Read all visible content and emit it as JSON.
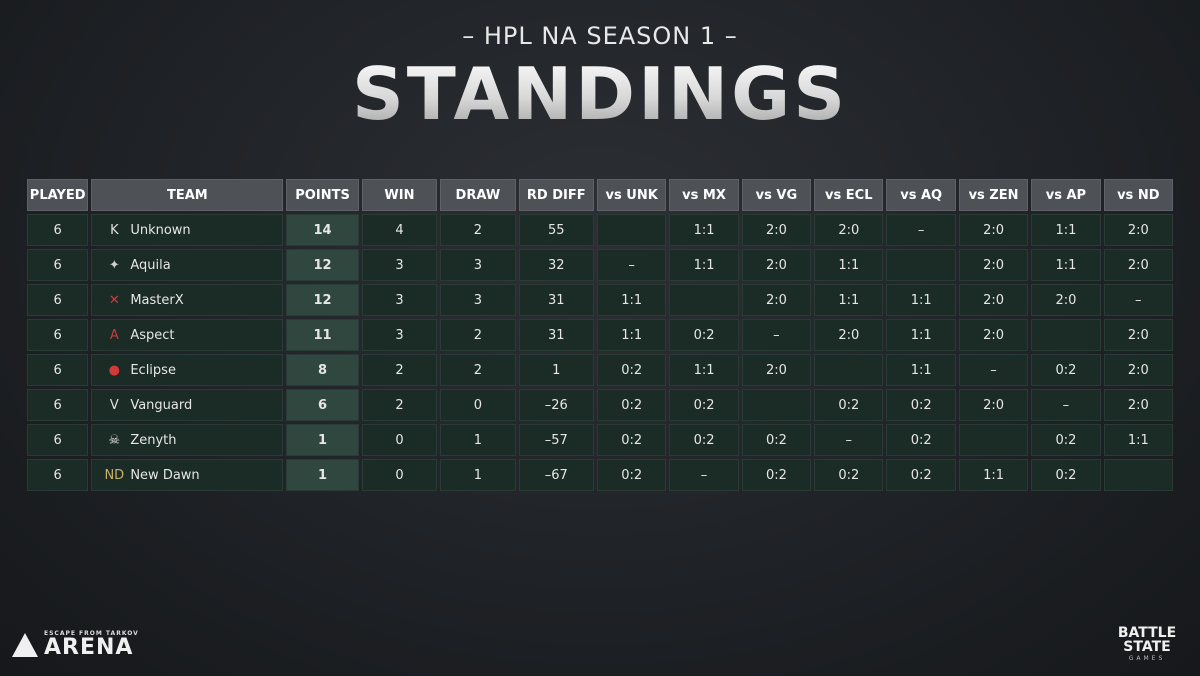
{
  "header": {
    "subtitle": "– HPL NA SEASON 1 –",
    "title": "STANDINGS"
  },
  "table": {
    "columns": [
      "PLAYED",
      "TEAM",
      "POINTS",
      "WIN",
      "DRAW",
      "RD DIFF",
      "vs UNK",
      "vs MX",
      "vs VG",
      "vs ECL",
      "vs AQ",
      "vs ZEN",
      "vs AP",
      "vs ND"
    ],
    "rows": [
      {
        "played": "6",
        "team": "Unknown",
        "logo_icon": "unknown-logo-icon",
        "logo_glyph": "K",
        "logo_color": "#e0e0e0",
        "points": "14",
        "win": "4",
        "draw": "2",
        "rd_diff": "55",
        "vs": [
          "",
          "1:1",
          "2:0",
          "2:0",
          "–",
          "2:0",
          "1:1",
          "2:0"
        ]
      },
      {
        "played": "6",
        "team": "Aquila",
        "logo_icon": "aquila-logo-icon",
        "logo_glyph": "✦",
        "logo_color": "#cfcfcf",
        "points": "12",
        "win": "3",
        "draw": "3",
        "rd_diff": "32",
        "vs": [
          "–",
          "1:1",
          "2:0",
          "1:1",
          "",
          "2:0",
          "1:1",
          "2:0"
        ]
      },
      {
        "played": "6",
        "team": "MasterX",
        "logo_icon": "masterx-logo-icon",
        "logo_glyph": "✕",
        "logo_color": "#d23a3a",
        "points": "12",
        "win": "3",
        "draw": "3",
        "rd_diff": "31",
        "vs": [
          "1:1",
          "",
          "2:0",
          "1:1",
          "1:1",
          "2:0",
          "2:0",
          "–"
        ]
      },
      {
        "played": "6",
        "team": "Aspect",
        "logo_icon": "aspect-logo-icon",
        "logo_glyph": "A",
        "logo_color": "#d23a3a",
        "points": "11",
        "win": "3",
        "draw": "2",
        "rd_diff": "31",
        "vs": [
          "1:1",
          "0:2",
          "–",
          "2:0",
          "1:1",
          "2:0",
          "",
          "2:0"
        ]
      },
      {
        "played": "6",
        "team": "Eclipse",
        "logo_icon": "eclipse-logo-icon",
        "logo_glyph": "●",
        "logo_color": "#d23a3a",
        "points": "8",
        "win": "2",
        "draw": "2",
        "rd_diff": "1",
        "vs": [
          "0:2",
          "1:1",
          "2:0",
          "",
          "1:1",
          "–",
          "0:2",
          "2:0"
        ]
      },
      {
        "played": "6",
        "team": "Vanguard",
        "logo_icon": "vanguard-logo-icon",
        "logo_glyph": "V",
        "logo_color": "#e0e0e0",
        "points": "6",
        "win": "2",
        "draw": "0",
        "rd_diff": "–26",
        "vs": [
          "0:2",
          "0:2",
          "",
          "0:2",
          "0:2",
          "2:0",
          "–",
          "2:0"
        ]
      },
      {
        "played": "6",
        "team": "Zenyth",
        "logo_icon": "zenyth-logo-icon",
        "logo_glyph": "☠",
        "logo_color": "#e0e0e0",
        "points": "1",
        "win": "0",
        "draw": "1",
        "rd_diff": "–57",
        "vs": [
          "0:2",
          "0:2",
          "0:2",
          "–",
          "0:2",
          "",
          "0:2",
          "1:1"
        ]
      },
      {
        "played": "6",
        "team": "New Dawn",
        "logo_icon": "new-dawn-logo-icon",
        "logo_glyph": "ND",
        "logo_color": "#c9b06a",
        "points": "1",
        "win": "0",
        "draw": "1",
        "rd_diff": "–67",
        "vs": [
          "0:2",
          "–",
          "0:2",
          "0:2",
          "0:2",
          "1:1",
          "0:2",
          ""
        ]
      }
    ]
  },
  "footer": {
    "left_logo_icon": "arena-logo-icon",
    "left_small": "ESCAPE FROM TARKOV",
    "left_big": "ARENA",
    "right_logo_icon": "battlestate-logo-icon",
    "right_big": "BATTLE STATE",
    "right_small": "GAMES"
  }
}
